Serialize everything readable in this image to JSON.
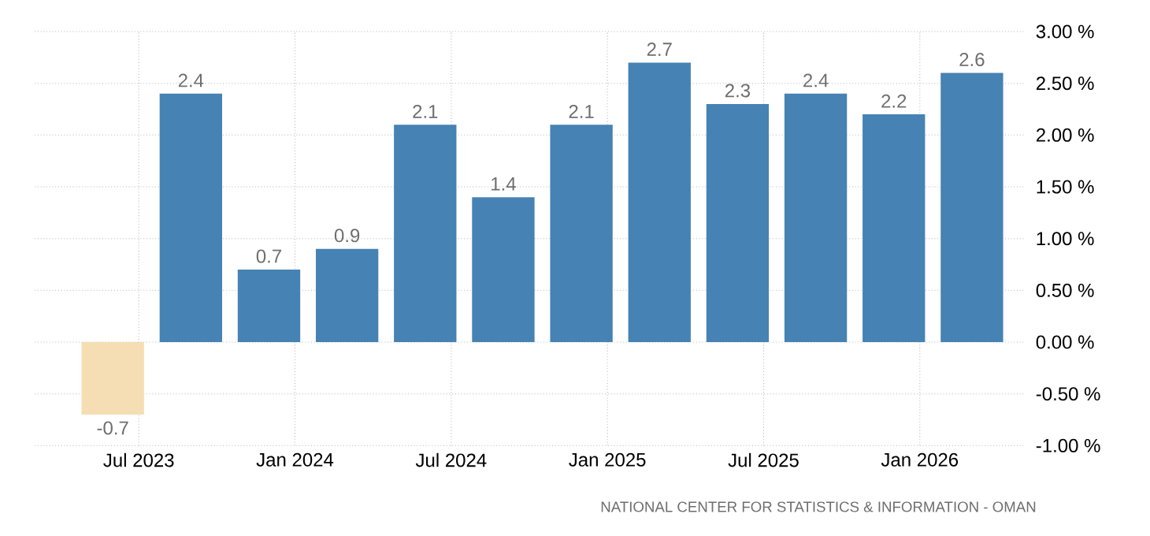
{
  "chart_data": {
    "type": "bar",
    "x": [
      "2023-06",
      "2023-09",
      "2023-12",
      "2024-03",
      "2024-06",
      "2024-09",
      "2024-12",
      "2025-03",
      "2025-06",
      "2025-09",
      "2025-12",
      "2026-03"
    ],
    "values": [
      -0.7,
      2.4,
      0.7,
      0.9,
      2.1,
      1.4,
      2.1,
      2.7,
      2.3,
      2.4,
      2.2,
      2.6
    ],
    "colors": [
      "#f5deb3",
      "#4682b4",
      "#4682b4",
      "#4682b4",
      "#4682b4",
      "#4682b4",
      "#4682b4",
      "#4682b4",
      "#4682b4",
      "#4682b4",
      "#4682b4",
      "#4682b4"
    ],
    "data_labels": true,
    "xlim": [
      "2023-03",
      "2026-05"
    ],
    "xticks": [
      {
        "value": "2023-07",
        "label": "Jul 2023"
      },
      {
        "value": "2024-01",
        "label": "Jan 2024"
      },
      {
        "value": "2024-07",
        "label": "Jul 2024"
      },
      {
        "value": "2025-01",
        "label": "Jan 2025"
      },
      {
        "value": "2025-07",
        "label": "Jul 2025"
      },
      {
        "value": "2026-01",
        "label": "Jan 2026"
      }
    ],
    "ylim": [
      -1,
      3
    ],
    "yticks": [
      {
        "value": -1,
        "label": "-1.00 %"
      },
      {
        "value": -0.5,
        "label": "-0.50 %"
      },
      {
        "value": 0,
        "label": "0.00 %"
      },
      {
        "value": 0.5,
        "label": "0.50 %"
      },
      {
        "value": 1,
        "label": "1.00 %"
      },
      {
        "value": 1.5,
        "label": "1.50 %"
      },
      {
        "value": 2,
        "label": "2.00 %"
      },
      {
        "value": 2.5,
        "label": "2.50 %"
      },
      {
        "value": 3,
        "label": "3.00 %"
      }
    ],
    "grid": true,
    "annotations": [
      "NATIONAL CENTER FOR STATISTICS & INFORMATION - OMAN"
    ]
  }
}
